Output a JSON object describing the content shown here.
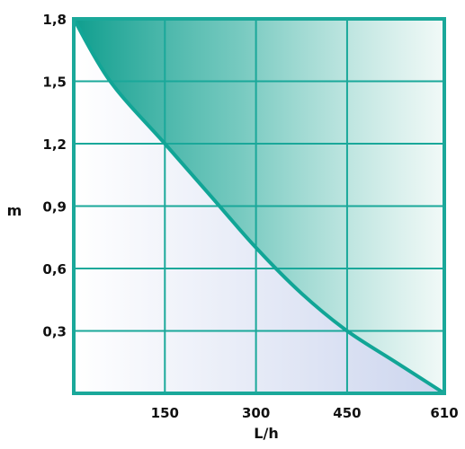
{
  "chart_data": {
    "type": "area",
    "xlabel": "L/h",
    "ylabel": "m",
    "xlim": [
      0,
      610
    ],
    "ylim": [
      0,
      1.8
    ],
    "x_ticks": [
      150,
      300,
      450,
      610
    ],
    "x_tick_labels": [
      "150",
      "300",
      "450",
      "610"
    ],
    "y_ticks": [
      0.3,
      0.6,
      0.9,
      1.2,
      1.5,
      1.8
    ],
    "y_tick_labels": [
      "0,3",
      "0,6",
      "0,9",
      "1,2",
      "1,5",
      "1,8"
    ],
    "grid": true,
    "series": [
      {
        "x": [
          0,
          60,
          150,
          225,
          300,
          375,
          450,
          530,
          610
        ],
        "y": [
          1.8,
          1.5,
          1.2,
          0.95,
          0.7,
          0.48,
          0.3,
          0.15,
          0
        ]
      }
    ],
    "colors": {
      "curve": "#11a596",
      "grid": "#1aa89a",
      "fill_upper_dark": "#0f9e8e",
      "fill_lower": "#d8dff2"
    }
  }
}
